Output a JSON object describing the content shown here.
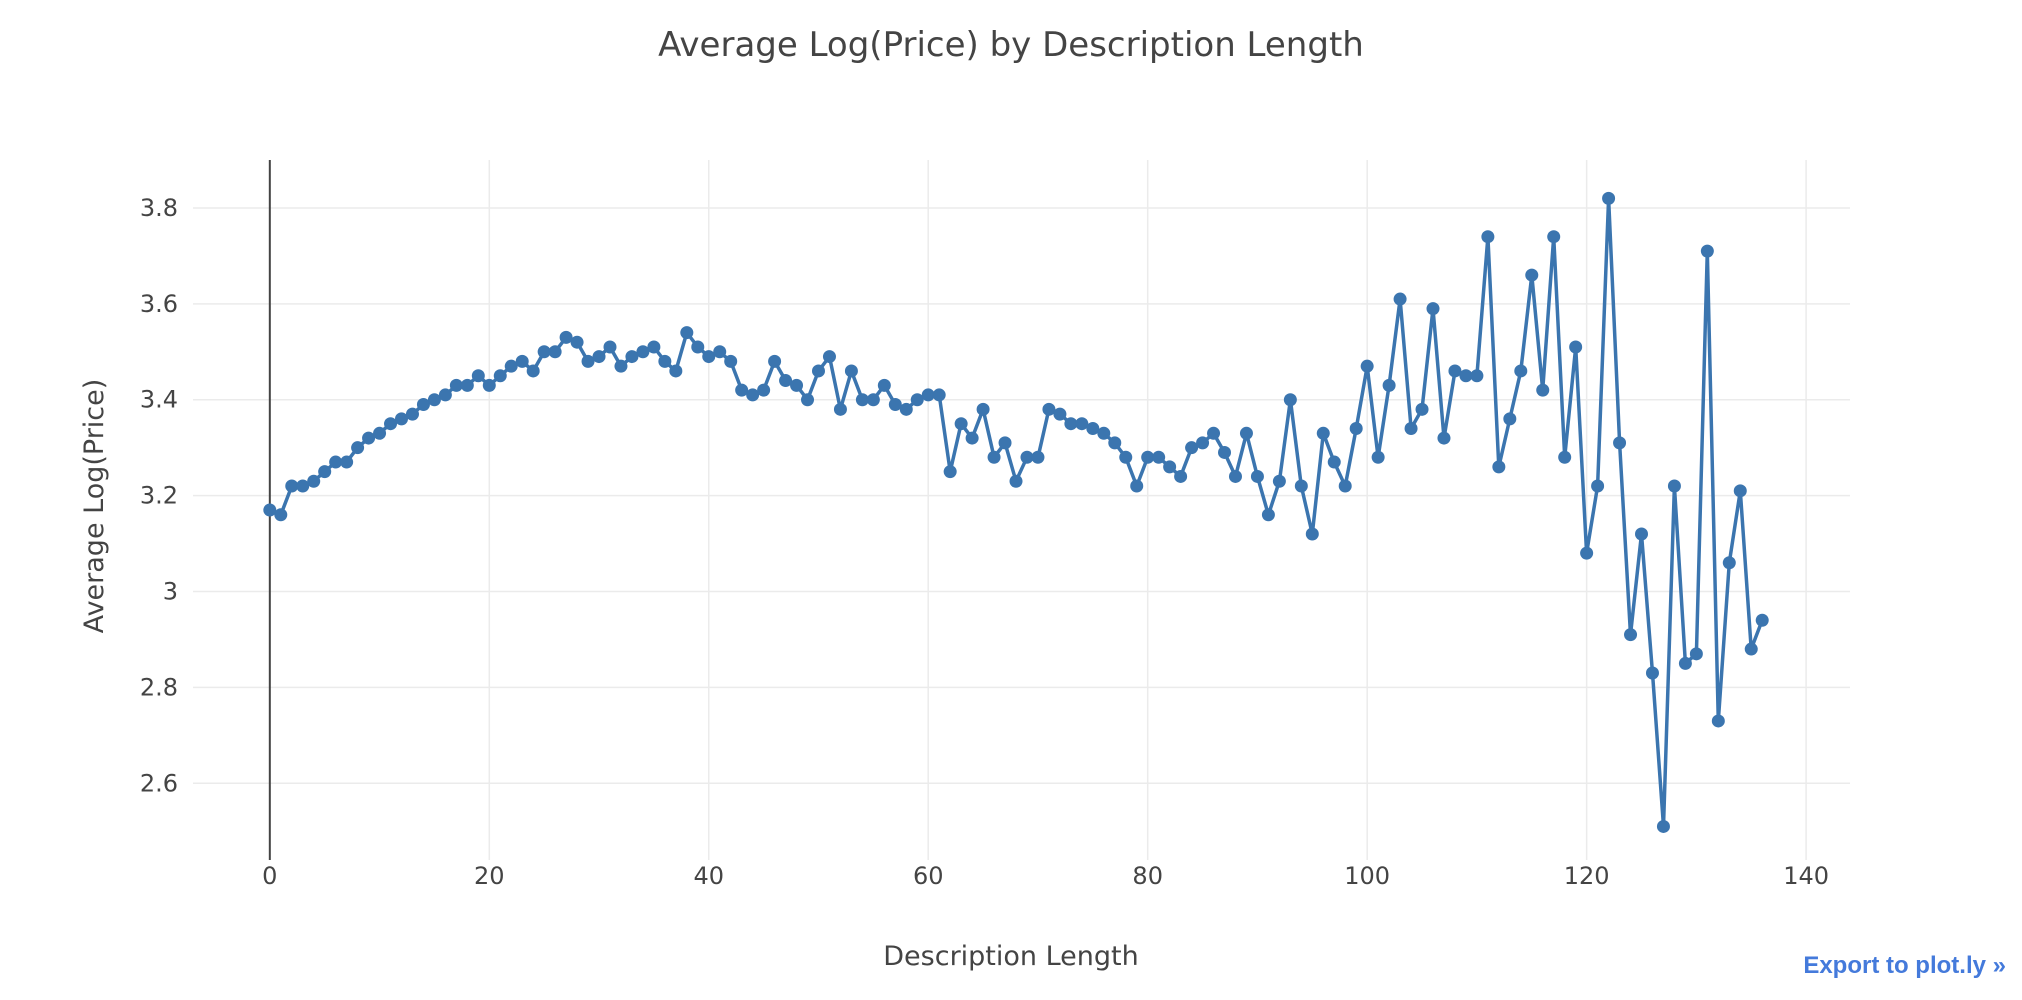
{
  "chart_data": {
    "type": "line",
    "title": "Average Log(Price) by Description Length",
    "xlabel": "Description Length",
    "ylabel": "Average Log(Price)",
    "xlim": [
      -7,
      144
    ],
    "ylim": [
      2.44,
      3.9
    ],
    "x_ticks": [
      0,
      20,
      40,
      60,
      80,
      100,
      120,
      140
    ],
    "y_ticks": [
      2.6,
      2.8,
      3.0,
      3.2,
      3.4,
      3.6,
      3.8
    ],
    "y_tick_labels": [
      "2.6",
      "2.8",
      "3",
      "3.2",
      "3.4",
      "3.6",
      "3.8"
    ],
    "grid": true,
    "line_color": "#3b75af",
    "series": [
      {
        "x": [
          0,
          1,
          2,
          3,
          4,
          5,
          6,
          7,
          8,
          9,
          10,
          11,
          12,
          13,
          14,
          15,
          16,
          17,
          18,
          19,
          20,
          21,
          22,
          23,
          24,
          25,
          26,
          27,
          28,
          29,
          30,
          31,
          32,
          33,
          34,
          35,
          36,
          37,
          38,
          39,
          40,
          41,
          42,
          43,
          44,
          45,
          46,
          47,
          48,
          49,
          50,
          51,
          52,
          53,
          54,
          55,
          56,
          57,
          58,
          59,
          60,
          61,
          62,
          63,
          64,
          65,
          66,
          67,
          68,
          69,
          70,
          71,
          72,
          73,
          74,
          75,
          76,
          77,
          78,
          79,
          80,
          81,
          82,
          83,
          84,
          85,
          86,
          87,
          88,
          89,
          90,
          91,
          92,
          93,
          94,
          95,
          96,
          97,
          98,
          99,
          100,
          101,
          102,
          103,
          104,
          105,
          106,
          107,
          108,
          109,
          110,
          111,
          112,
          113,
          114,
          115,
          116,
          117,
          118,
          119,
          120,
          121,
          122,
          123,
          124,
          125,
          126,
          127,
          128,
          129,
          130,
          131,
          132,
          133,
          134,
          135,
          136
        ],
        "y": [
          3.17,
          3.16,
          3.22,
          3.22,
          3.23,
          3.25,
          3.27,
          3.27,
          3.3,
          3.32,
          3.33,
          3.35,
          3.36,
          3.37,
          3.39,
          3.4,
          3.41,
          3.43,
          3.43,
          3.45,
          3.43,
          3.45,
          3.47,
          3.48,
          3.46,
          3.5,
          3.5,
          3.53,
          3.52,
          3.48,
          3.49,
          3.51,
          3.47,
          3.49,
          3.5,
          3.51,
          3.48,
          3.46,
          3.54,
          3.51,
          3.49,
          3.5,
          3.48,
          3.42,
          3.41,
          3.42,
          3.48,
          3.44,
          3.43,
          3.4,
          3.46,
          3.49,
          3.38,
          3.46,
          3.4,
          3.4,
          3.43,
          3.39,
          3.38,
          3.4,
          3.41,
          3.41,
          3.25,
          3.35,
          3.32,
          3.38,
          3.28,
          3.31,
          3.23,
          3.28,
          3.28,
          3.38,
          3.37,
          3.35,
          3.35,
          3.34,
          3.33,
          3.31,
          3.28,
          3.22,
          3.28,
          3.28,
          3.26,
          3.24,
          3.3,
          3.31,
          3.33,
          3.29,
          3.24,
          3.33,
          3.24,
          3.16,
          3.23,
          3.4,
          3.22,
          3.12,
          3.33,
          3.27,
          3.22,
          3.34,
          3.47,
          3.28,
          3.43,
          3.61,
          3.34,
          3.38,
          3.59,
          3.32,
          3.46,
          3.45,
          3.45,
          3.74,
          3.26,
          3.36,
          3.46,
          3.66,
          3.42,
          3.74,
          3.28,
          3.51,
          3.08,
          3.22,
          3.82,
          3.31,
          2.91,
          3.12,
          2.83,
          2.51,
          3.22,
          2.85,
          2.87,
          3.71,
          2.73,
          3.06,
          3.21,
          2.88,
          2.94
        ]
      }
    ]
  },
  "export_link": "Export to plot.ly »"
}
